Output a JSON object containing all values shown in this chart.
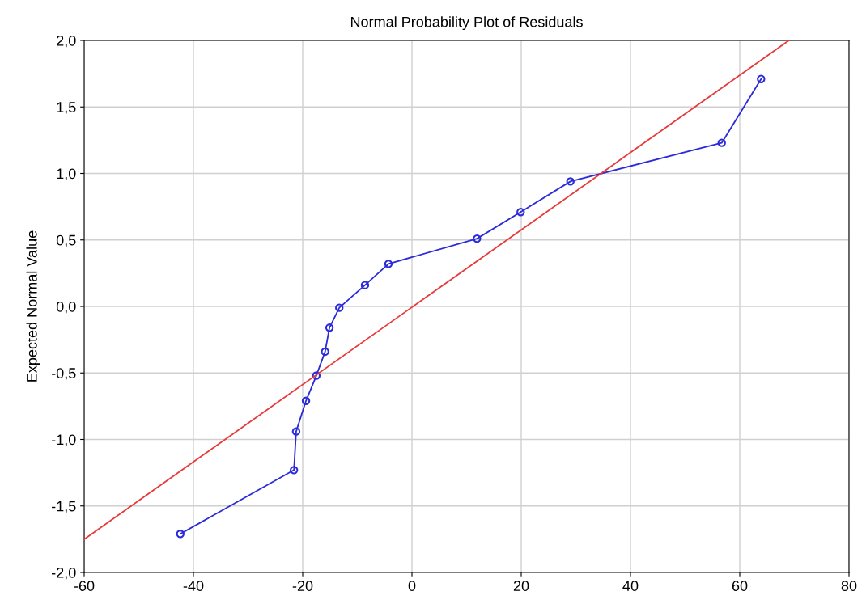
{
  "chart_data": {
    "type": "line",
    "title": "Normal Probability Plot of Residuals",
    "ylabel": "Expected Normal Value",
    "series": [
      {
        "color": "#2b2bd9",
        "marker": "circle",
        "x": [
          -42.4,
          -21.6,
          -21.2,
          -19.4,
          -17.5,
          -15.9,
          -15.1,
          -13.3,
          -8.6,
          -4.3,
          11.9,
          19.9,
          29.0,
          56.7,
          63.9
        ],
        "values": [
          -1.71,
          -1.23,
          -0.94,
          -0.71,
          -0.52,
          -0.34,
          -0.16,
          -0.01,
          0.16,
          0.32,
          0.51,
          0.71,
          0.94,
          1.23,
          1.71
        ]
      },
      {
        "color": "#e8393b",
        "marker": "none",
        "x": [
          -60,
          69
        ],
        "values": [
          -1.75,
          2.0
        ]
      }
    ],
    "xlim": [
      -60,
      80
    ],
    "xticks": [
      -60,
      -40,
      -20,
      0,
      20,
      40,
      60,
      80
    ],
    "ylim": [
      -2.0,
      2.0
    ],
    "yticks": [
      {
        "value": -2.0,
        "label": "-2,0"
      },
      {
        "value": -1.5,
        "label": "-1,5"
      },
      {
        "value": -1.0,
        "label": "-1,0"
      },
      {
        "value": -0.5,
        "label": "-0,5"
      },
      {
        "value": 0.0,
        "label": "0,0"
      },
      {
        "value": 0.5,
        "label": "0,5"
      },
      {
        "value": 1.0,
        "label": "1,0"
      },
      {
        "value": 1.5,
        "label": "1,5"
      },
      {
        "value": 2.0,
        "label": "2,0"
      }
    ],
    "grid": true
  }
}
